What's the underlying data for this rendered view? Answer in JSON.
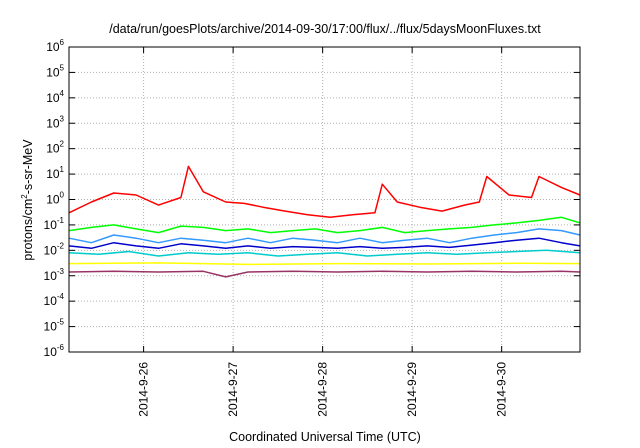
{
  "chart_data": {
    "type": "line",
    "title": "/data/run/goesPlots/archive/2014-09-30/17:00/flux/../flux/5daysMoonFluxes.txt",
    "xlabel": "Coordinated Universal Time (UTC)",
    "ylabel": {
      "prefix": "protons/cm",
      "sup": "2",
      "suffix": "-s-sr-MeV"
    },
    "yscale": "log",
    "ylim": [
      1e-06,
      1000000.0
    ],
    "y_ticks": [
      {
        "base": "10",
        "exp": "-6",
        "value": 1e-06
      },
      {
        "base": "10",
        "exp": "-5",
        "value": 1e-05
      },
      {
        "base": "10",
        "exp": "-4",
        "value": 0.0001
      },
      {
        "base": "10",
        "exp": "-3",
        "value": 0.001
      },
      {
        "base": "10",
        "exp": "-2",
        "value": 0.01
      },
      {
        "base": "10",
        "exp": "-1",
        "value": 0.1
      },
      {
        "base": "10",
        "exp": "0",
        "value": 1
      },
      {
        "base": "10",
        "exp": "1",
        "value": 10
      },
      {
        "base": "10",
        "exp": "2",
        "value": 100
      },
      {
        "base": "10",
        "exp": "3",
        "value": 1000
      },
      {
        "base": "10",
        "exp": "4",
        "value": 10000
      },
      {
        "base": "10",
        "exp": "5",
        "value": 100000
      },
      {
        "base": "10",
        "exp": "6",
        "value": 1000000
      }
    ],
    "xlim": [
      "2014-09-25T04:00",
      "2014-09-30T21:00"
    ],
    "x_ticks": [
      {
        "label": "2014-9-26",
        "value": "2014-09-26T00:00"
      },
      {
        "label": "2014-9-27",
        "value": "2014-09-27T00:00"
      },
      {
        "label": "2014-9-28",
        "value": "2014-09-28T00:00"
      },
      {
        "label": "2014-9-29",
        "value": "2014-09-29T00:00"
      },
      {
        "label": "2014-9-30",
        "value": "2014-09-30T00:00"
      }
    ],
    "grid": true,
    "series": [
      {
        "color": "#ff0000",
        "x": [
          "2014-09-25T04:00",
          "2014-09-25T10:00",
          "2014-09-25T16:00",
          "2014-09-25T22:00",
          "2014-09-26T04:00",
          "2014-09-26T10:00",
          "2014-09-26T12:00",
          "2014-09-26T16:00",
          "2014-09-26T22:00",
          "2014-09-27T03:00",
          "2014-09-27T08:00",
          "2014-09-27T14:00",
          "2014-09-27T20:00",
          "2014-09-28T02:00",
          "2014-09-28T08:00",
          "2014-09-28T14:00",
          "2014-09-28T16:00",
          "2014-09-28T20:00",
          "2014-09-29T02:00",
          "2014-09-29T08:00",
          "2014-09-29T14:00",
          "2014-09-29T18:00",
          "2014-09-29T20:00",
          "2014-09-30T02:00",
          "2014-09-30T08:00",
          "2014-09-30T10:00",
          "2014-09-30T16:00",
          "2014-09-30T21:00"
        ],
        "values": [
          0.3,
          0.8,
          1.8,
          1.5,
          0.6,
          1.2,
          20,
          2.0,
          0.8,
          0.7,
          0.5,
          0.35,
          0.25,
          0.2,
          0.25,
          0.3,
          4.0,
          0.8,
          0.5,
          0.35,
          0.6,
          0.8,
          8.0,
          1.5,
          1.2,
          8.0,
          3.0,
          1.5
        ]
      },
      {
        "color": "#00ff00",
        "x": [
          "2014-09-25T04:00",
          "2014-09-25T10:00",
          "2014-09-25T16:00",
          "2014-09-25T22:00",
          "2014-09-26T04:00",
          "2014-09-26T10:00",
          "2014-09-26T16:00",
          "2014-09-26T22:00",
          "2014-09-27T04:00",
          "2014-09-27T10:00",
          "2014-09-27T16:00",
          "2014-09-27T22:00",
          "2014-09-28T04:00",
          "2014-09-28T10:00",
          "2014-09-28T16:00",
          "2014-09-28T22:00",
          "2014-09-29T04:00",
          "2014-09-29T10:00",
          "2014-09-29T16:00",
          "2014-09-29T22:00",
          "2014-09-30T04:00",
          "2014-09-30T10:00",
          "2014-09-30T16:00",
          "2014-09-30T21:00"
        ],
        "values": [
          0.06,
          0.08,
          0.1,
          0.07,
          0.05,
          0.09,
          0.08,
          0.06,
          0.07,
          0.05,
          0.06,
          0.07,
          0.05,
          0.06,
          0.08,
          0.05,
          0.06,
          0.07,
          0.08,
          0.1,
          0.12,
          0.15,
          0.2,
          0.12
        ]
      },
      {
        "color": "#3399ff",
        "x": [
          "2014-09-25T04:00",
          "2014-09-25T10:00",
          "2014-09-25T16:00",
          "2014-09-25T22:00",
          "2014-09-26T04:00",
          "2014-09-26T10:00",
          "2014-09-26T16:00",
          "2014-09-26T22:00",
          "2014-09-27T04:00",
          "2014-09-27T10:00",
          "2014-09-27T16:00",
          "2014-09-27T22:00",
          "2014-09-28T04:00",
          "2014-09-28T10:00",
          "2014-09-28T16:00",
          "2014-09-28T22:00",
          "2014-09-29T04:00",
          "2014-09-29T10:00",
          "2014-09-29T16:00",
          "2014-09-29T22:00",
          "2014-09-30T04:00",
          "2014-09-30T10:00",
          "2014-09-30T16:00",
          "2014-09-30T21:00"
        ],
        "values": [
          0.03,
          0.02,
          0.04,
          0.03,
          0.02,
          0.03,
          0.025,
          0.02,
          0.03,
          0.02,
          0.03,
          0.025,
          0.02,
          0.03,
          0.02,
          0.025,
          0.03,
          0.02,
          0.03,
          0.04,
          0.05,
          0.07,
          0.06,
          0.04
        ]
      },
      {
        "color": "#0000cc",
        "x": [
          "2014-09-25T04:00",
          "2014-09-25T10:00",
          "2014-09-25T16:00",
          "2014-09-25T22:00",
          "2014-09-26T04:00",
          "2014-09-26T10:00",
          "2014-09-26T16:00",
          "2014-09-26T22:00",
          "2014-09-27T04:00",
          "2014-09-27T10:00",
          "2014-09-27T16:00",
          "2014-09-27T22:00",
          "2014-09-28T04:00",
          "2014-09-28T10:00",
          "2014-09-28T16:00",
          "2014-09-28T22:00",
          "2014-09-29T04:00",
          "2014-09-29T10:00",
          "2014-09-29T16:00",
          "2014-09-29T22:00",
          "2014-09-30T04:00",
          "2014-09-30T10:00",
          "2014-09-30T16:00",
          "2014-09-30T21:00"
        ],
        "values": [
          0.015,
          0.012,
          0.02,
          0.015,
          0.012,
          0.018,
          0.015,
          0.012,
          0.015,
          0.012,
          0.014,
          0.013,
          0.012,
          0.014,
          0.012,
          0.013,
          0.015,
          0.013,
          0.016,
          0.02,
          0.025,
          0.03,
          0.02,
          0.015
        ]
      },
      {
        "color": "#00cccc",
        "x": [
          "2014-09-25T04:00",
          "2014-09-25T12:00",
          "2014-09-25T20:00",
          "2014-09-26T04:00",
          "2014-09-26T12:00",
          "2014-09-26T20:00",
          "2014-09-27T04:00",
          "2014-09-27T12:00",
          "2014-09-27T20:00",
          "2014-09-28T04:00",
          "2014-09-28T12:00",
          "2014-09-28T20:00",
          "2014-09-29T04:00",
          "2014-09-29T12:00",
          "2014-09-29T20:00",
          "2014-09-30T04:00",
          "2014-09-30T12:00",
          "2014-09-30T21:00"
        ],
        "values": [
          0.008,
          0.007,
          0.009,
          0.006,
          0.008,
          0.007,
          0.008,
          0.006,
          0.007,
          0.008,
          0.006,
          0.007,
          0.008,
          0.007,
          0.008,
          0.009,
          0.01,
          0.008
        ]
      },
      {
        "color": "#ffff00",
        "x": [
          "2014-09-25T04:00",
          "2014-09-26T04:00",
          "2014-09-27T04:00",
          "2014-09-28T04:00",
          "2014-09-29T04:00",
          "2014-09-30T04:00",
          "2014-09-30T21:00"
        ],
        "values": [
          0.003,
          0.0032,
          0.0028,
          0.003,
          0.0029,
          0.0031,
          0.003
        ]
      },
      {
        "color": "#993366",
        "x": [
          "2014-09-25T04:00",
          "2014-09-25T16:00",
          "2014-09-26T04:00",
          "2014-09-26T16:00",
          "2014-09-26T22:00",
          "2014-09-27T04:00",
          "2014-09-27T16:00",
          "2014-09-28T04:00",
          "2014-09-28T16:00",
          "2014-09-29T04:00",
          "2014-09-29T16:00",
          "2014-09-30T04:00",
          "2014-09-30T16:00",
          "2014-09-30T21:00"
        ],
        "values": [
          0.0014,
          0.0015,
          0.0014,
          0.0015,
          0.0009,
          0.0014,
          0.0015,
          0.0014,
          0.0015,
          0.0014,
          0.0015,
          0.0014,
          0.0015,
          0.0014
        ]
      }
    ]
  }
}
